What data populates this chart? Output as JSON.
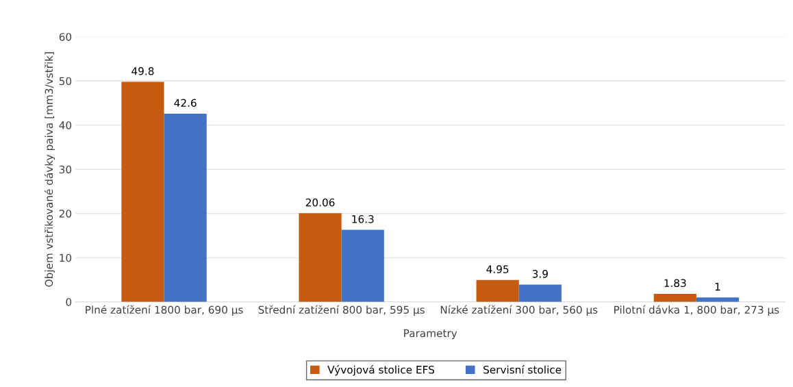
{
  "chart_data": {
    "type": "bar",
    "xlabel": "Parametry",
    "ylabel": "Objem vstřikované dávky paiva [mm3/vstřik]",
    "categories": [
      "Plné zatížení 1800 bar, 690 µs",
      "Střední zatížení 800 bar, 595 µs",
      "Nízké zatížení 300 bar, 560 µs",
      "Pilotní dávka 1, 800 bar, 273 µs"
    ],
    "series": [
      {
        "name": "Vývojová stolice EFS",
        "color": "#c55a11",
        "values": [
          49.8,
          20.06,
          4.95,
          1.83
        ]
      },
      {
        "name": "Servisní stolice",
        "color": "#4472c4",
        "values": [
          42.6,
          16.3,
          3.9,
          1
        ]
      }
    ],
    "ylim": [
      0,
      60
    ],
    "yticks": [
      0,
      10,
      20,
      30,
      40,
      50,
      60
    ],
    "grid": "y",
    "legend": "bottom",
    "data_labels": true
  }
}
